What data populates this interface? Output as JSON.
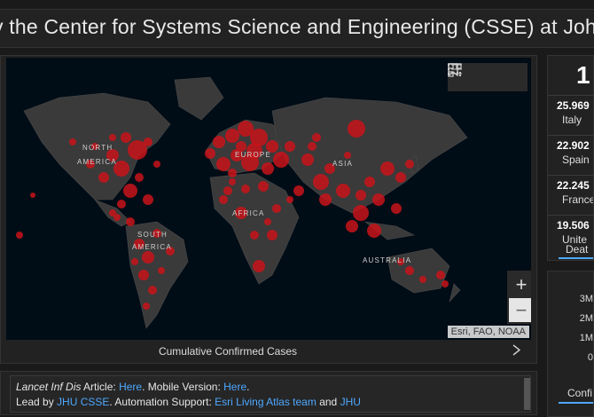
{
  "header": {
    "title": "y the Center for Systems Science and Engineering (CSSE) at Joh"
  },
  "map": {
    "labels": {
      "north_america": "NORTH\nAMERICA",
      "europe": "EUROPE",
      "asia": "ASIA",
      "africa": "AFRICA",
      "south_america": "SOUTH\nAMERICA",
      "australia": "AUSTRALIA"
    },
    "attribution": "Esri, FAO, NOAA",
    "caption": "Cumulative Confirmed Cases",
    "zoom_in": "+",
    "zoom_out": "−",
    "bubble_color": "#c8141a",
    "ocean_color": "#000c16",
    "land_color": "#3a3a3a"
  },
  "footer": {
    "line1_pre": "Lancet Inf Dis",
    "line1_mid": " Article: ",
    "line1_link1": "Here",
    "line1_mid2": ". Mobile Version: ",
    "line1_link2": "Here",
    "line1_end": ".",
    "line2_pre": "Lead by ",
    "line2_link1": "JHU CSSE",
    "line2_mid": ". Automation Support: ",
    "line2_link2": "Esri Living Atlas team",
    "line2_and": " and ",
    "line2_link3": "JHU",
    "link_color": "#4ea8ff"
  },
  "deaths": {
    "total": "1",
    "items": [
      {
        "num": "25.969",
        "country": "Italy"
      },
      {
        "num": "22.902",
        "country": "Spain"
      },
      {
        "num": "22.245",
        "country": "France"
      },
      {
        "num": "19.506",
        "country": "Unite"
      }
    ],
    "tab": "Deat"
  },
  "chart": {
    "ticks": [
      "3M",
      "2M",
      "1M",
      "0"
    ],
    "tab": "Confi"
  }
}
